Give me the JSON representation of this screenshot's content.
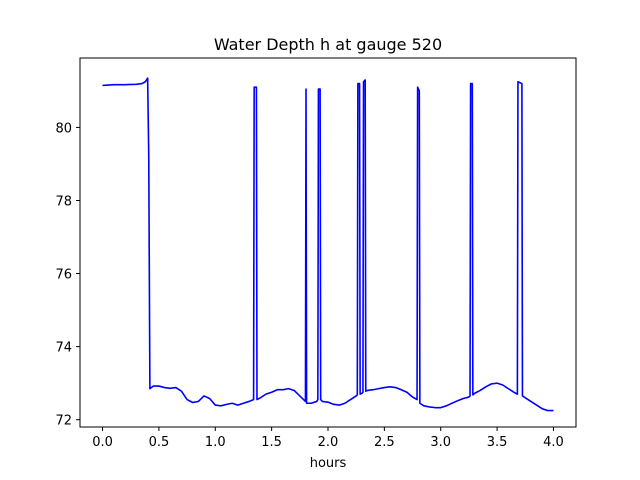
{
  "chart_data": {
    "type": "line",
    "title": "Water Depth h at gauge 520",
    "xlabel": "hours",
    "ylabel": "",
    "xlim": [
      -0.2,
      4.2
    ],
    "ylim": [
      71.8,
      81.9
    ],
    "x_ticks": [
      0.0,
      0.5,
      1.0,
      1.5,
      2.0,
      2.5,
      3.0,
      3.5,
      4.0
    ],
    "x_tick_labels": [
      "0.0",
      "0.5",
      "1.0",
      "1.5",
      "2.0",
      "2.5",
      "3.0",
      "3.5",
      "4.0"
    ],
    "y_ticks": [
      72,
      74,
      76,
      78,
      80
    ],
    "y_tick_labels": [
      "72",
      "74",
      "76",
      "78",
      "80"
    ],
    "grid": false,
    "line_color": "#0000ff",
    "series": [
      {
        "x": [
          0.0,
          0.1,
          0.2,
          0.3,
          0.35,
          0.38,
          0.4,
          0.41,
          0.42,
          0.45,
          0.5,
          0.55,
          0.6,
          0.65,
          0.7,
          0.75,
          0.8,
          0.85,
          0.9,
          0.95,
          1.0,
          1.05,
          1.1,
          1.15,
          1.2,
          1.25,
          1.3,
          1.34,
          1.345,
          1.365,
          1.37,
          1.4,
          1.45,
          1.5,
          1.55,
          1.6,
          1.65,
          1.7,
          1.75,
          1.8,
          1.805,
          1.81,
          1.85,
          1.9,
          1.91,
          1.915,
          1.93,
          1.935,
          1.95,
          2.0,
          2.05,
          2.1,
          2.15,
          2.2,
          2.25,
          2.26,
          2.265,
          2.28,
          2.285,
          2.3,
          2.31,
          2.315,
          2.33,
          2.335,
          2.35,
          2.4,
          2.45,
          2.5,
          2.55,
          2.6,
          2.65,
          2.7,
          2.75,
          2.79,
          2.795,
          2.81,
          2.815,
          2.85,
          2.9,
          2.95,
          3.0,
          3.05,
          3.1,
          3.15,
          3.2,
          3.25,
          3.26,
          3.265,
          3.28,
          3.285,
          3.3,
          3.35,
          3.4,
          3.45,
          3.5,
          3.55,
          3.6,
          3.65,
          3.68,
          3.685,
          3.72,
          3.725,
          3.75,
          3.8,
          3.85,
          3.9,
          3.95,
          4.0
        ],
        "y": [
          81.15,
          81.17,
          81.17,
          81.18,
          81.2,
          81.25,
          81.35,
          79.2,
          72.85,
          72.92,
          72.92,
          72.88,
          72.86,
          72.88,
          72.78,
          72.55,
          72.47,
          72.5,
          72.65,
          72.58,
          72.4,
          72.38,
          72.42,
          72.45,
          72.4,
          72.45,
          72.5,
          72.55,
          81.1,
          81.1,
          72.55,
          72.6,
          72.7,
          72.75,
          72.82,
          72.82,
          72.85,
          72.8,
          72.65,
          72.5,
          81.05,
          72.45,
          72.45,
          72.5,
          72.55,
          81.05,
          81.05,
          72.55,
          72.5,
          72.48,
          72.42,
          72.4,
          72.45,
          72.55,
          72.65,
          72.68,
          81.2,
          81.2,
          72.7,
          72.72,
          72.75,
          81.25,
          81.3,
          72.78,
          72.8,
          72.82,
          72.85,
          72.88,
          72.9,
          72.88,
          72.82,
          72.75,
          72.62,
          72.55,
          81.1,
          81.0,
          72.45,
          72.38,
          72.35,
          72.33,
          72.33,
          72.38,
          72.45,
          72.52,
          72.58,
          72.62,
          72.65,
          81.2,
          81.2,
          72.68,
          72.72,
          72.8,
          72.9,
          72.98,
          73.0,
          72.95,
          72.85,
          72.75,
          72.7,
          81.25,
          81.2,
          72.65,
          72.6,
          72.5,
          72.4,
          72.3,
          72.25,
          72.25
        ]
      }
    ]
  }
}
